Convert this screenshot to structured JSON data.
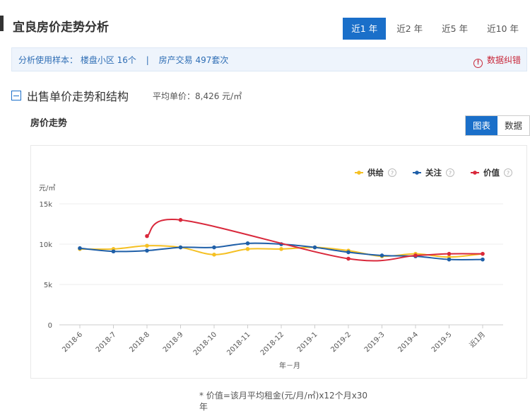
{
  "header": {
    "title": "宜良房价走势分析"
  },
  "range_tabs": [
    "近1 年",
    "近2 年",
    "近5 年",
    "近10 年"
  ],
  "notice": {
    "sample_label": "分析使用样本：",
    "sample_value": "楼盘小区 16个",
    "trade": "房产交易 497套次",
    "separator": "|",
    "report_label": "数据纠错",
    "report_icon": "alert-circle-icon"
  },
  "section": {
    "title": "出售单价走势和结构",
    "avg_price": "平均单价：8,426 元/㎡"
  },
  "chart_heading": "房价走势",
  "view_tabs": [
    "图表",
    "数据"
  ],
  "footnote": "* 价值=该月平均租金(元/月/㎡)x12个月x30年",
  "colors": {
    "accent": "#1a6fc9",
    "supply": "#f5c023",
    "attention": "#1f5fa8",
    "value": "#d9283b"
  },
  "chart_data": {
    "type": "line",
    "ylabel": "元/㎡",
    "xlabel": "年－月",
    "ylim": [
      0,
      15000
    ],
    "yticks": [
      0,
      5000,
      10000,
      15000
    ],
    "ytick_labels": [
      "0",
      "5k",
      "10k",
      "15k"
    ],
    "categories": [
      "2018-6",
      "2018-7",
      "2018-8",
      "2018-9",
      "2018-10",
      "2018-11",
      "2018-12",
      "2019-1",
      "2019-2",
      "2019-3",
      "2019-4",
      "2019-5",
      "近1月"
    ],
    "legend_position": "top-right",
    "series": [
      {
        "name": "供给",
        "color": "#f5c023",
        "values": [
          9400,
          9400,
          9800,
          9600,
          8700,
          9400,
          9400,
          9600,
          9200,
          8500,
          8800,
          8400,
          8800
        ]
      },
      {
        "name": "关注",
        "color": "#1f5fa8",
        "values": [
          9500,
          9100,
          9200,
          9600,
          9600,
          10100,
          10000,
          9600,
          9000,
          8600,
          8500,
          8100,
          8100
        ]
      },
      {
        "name": "价值",
        "color": "#d9283b",
        "values": [
          null,
          null,
          11000,
          13000,
          null,
          null,
          null,
          null,
          8200,
          null,
          8600,
          8800,
          8800
        ]
      }
    ]
  }
}
